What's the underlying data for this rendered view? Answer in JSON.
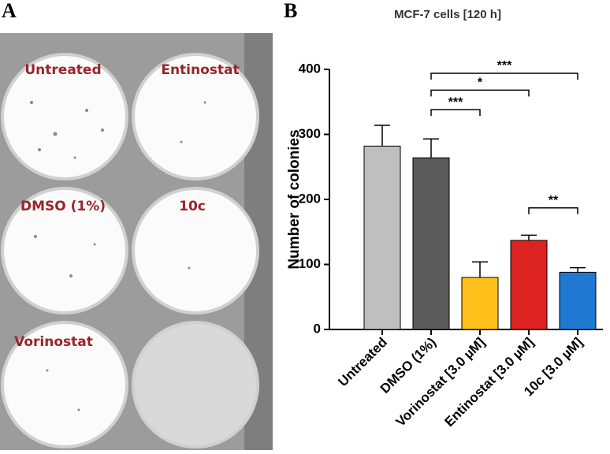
{
  "panel_a": {
    "label": "A",
    "wells": [
      "Untreated",
      "Entinostat",
      "DMSO (1%)",
      "10c",
      "Vorinostat"
    ]
  },
  "chart_data": {
    "type": "bar",
    "panel_label": "B",
    "title": "MCF-7 cells [120 h]",
    "y_label": "Number of colonies",
    "categories": [
      "Untreated",
      "DMSO (1%)",
      "Vorinostat [3.0 µM]",
      "Entinostat [3.0 µM]",
      "10c [3.0 µM]"
    ],
    "values": [
      282,
      264,
      80,
      137,
      88
    ],
    "errors": [
      32,
      29,
      24,
      8,
      7
    ],
    "colors": [
      "#bfbfbf",
      "#5a5a5a",
      "#ffbf1a",
      "#dd2222",
      "#1f78d2"
    ],
    "ylim": [
      0,
      400
    ],
    "yticks": [
      0,
      100,
      200,
      300,
      400
    ],
    "annotations": [
      {
        "label": "***",
        "from": 1,
        "to": 4,
        "y": 394
      },
      {
        "label": "*",
        "from": 1,
        "to": 3,
        "y": 368
      },
      {
        "label": "***",
        "from": 1,
        "to": 2,
        "y": 338
      },
      {
        "label": "**",
        "from": 3,
        "to": 4,
        "y": 187
      }
    ]
  }
}
